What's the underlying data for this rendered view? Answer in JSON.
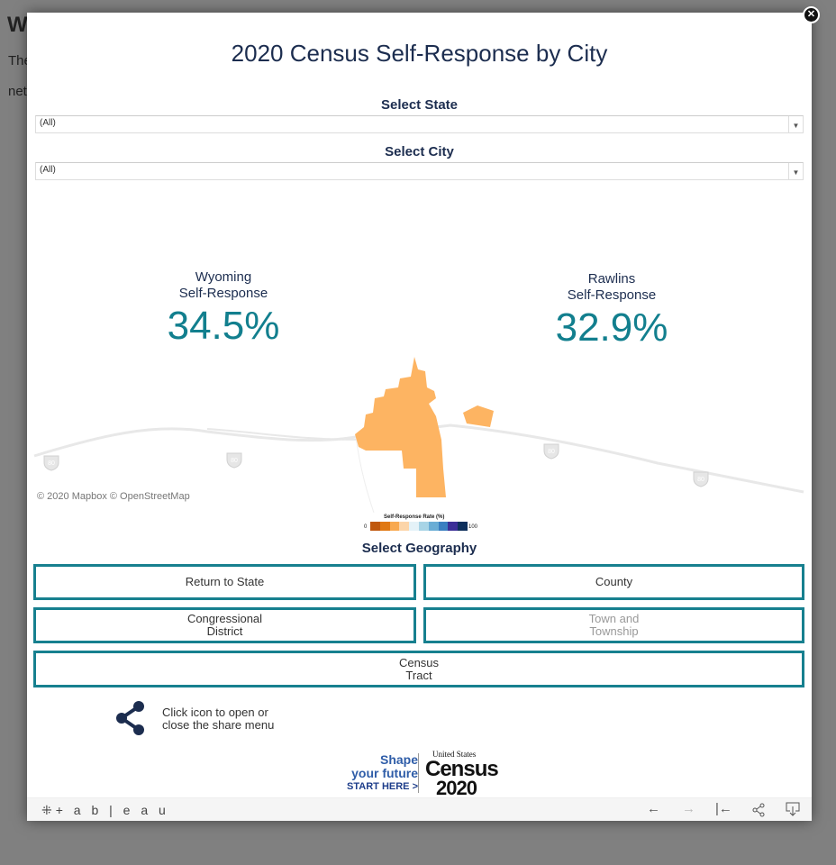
{
  "background_page": {
    "heading_fragment": "W",
    "line1_fragment": "The",
    "line2_fragment": "net"
  },
  "modal": {
    "close_icon": "close-icon"
  },
  "title": "2020 Census Self-Response by City",
  "filters": {
    "state": {
      "label": "Select State",
      "value": "(All)"
    },
    "city": {
      "label": "Select City",
      "value": "(All)"
    }
  },
  "kpis": [
    {
      "line1": "Wyoming",
      "line2": "Self-Response",
      "value": "34.5%"
    },
    {
      "line1": "Rawlins",
      "line2": "Self-Response",
      "value": "32.9%"
    }
  ],
  "map": {
    "attribution": "© 2020 Mapbox  © OpenStreetMap",
    "highway_shield": "80",
    "city_fill": "#fdb462",
    "legend": {
      "title": "Self-Response Rate (%)",
      "min": "0",
      "max": "100",
      "colors": [
        "#c0580d",
        "#e07812",
        "#f8a950",
        "#fcd5a9",
        "#e4f2f8",
        "#a8d4e6",
        "#6aadd5",
        "#3a7fc1",
        "#3b2f98",
        "#0d2f5c"
      ]
    }
  },
  "geography": {
    "label": "Select Geography",
    "buttons": {
      "state": "Return to State",
      "county": "County",
      "congressional_line1": "Congressional",
      "congressional_line2": "District",
      "town_line1": "Town and",
      "town_line2": "Township",
      "tract_line1": "Census",
      "tract_line2": "Tract"
    }
  },
  "share": {
    "line1": "Click icon to open or",
    "line2": "close the share menu"
  },
  "census_logo": {
    "shape": "Shape",
    "future": "your future",
    "start": "START HERE >",
    "us": "United States",
    "census": "Census",
    "year": "2020"
  },
  "toolbar": {
    "brand": "+ a b | e a u",
    "undo": "←",
    "redo": "→",
    "revert": "|←",
    "share": "share-icon",
    "download": "download-icon"
  },
  "colors": {
    "accent": "#17808f",
    "title": "#1c2d4f"
  }
}
